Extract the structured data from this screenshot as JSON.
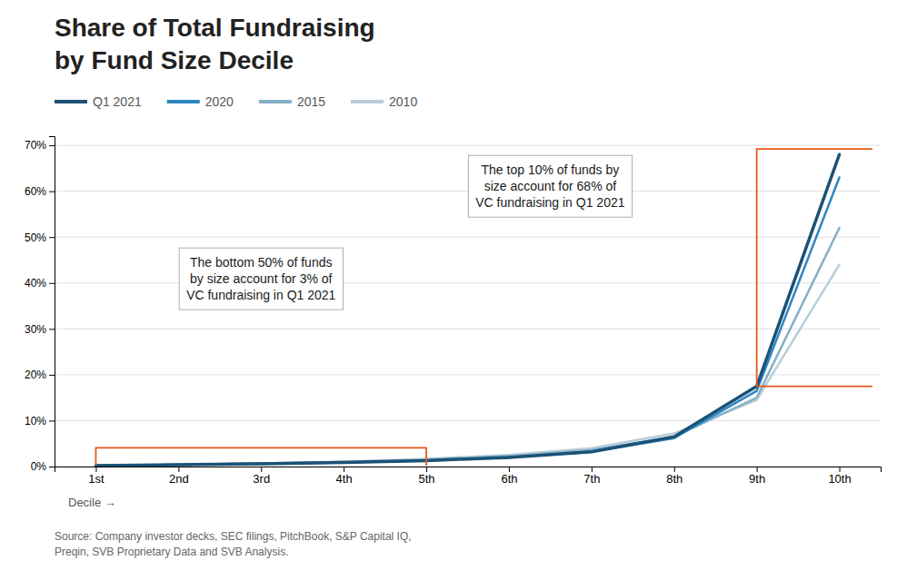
{
  "chart_data": {
    "type": "line",
    "title": [
      "Share of Total Fundraising",
      "by Fund Size Decile"
    ],
    "xlabel": "Decile  →",
    "categories": [
      "1st",
      "2nd",
      "3rd",
      "4th",
      "5th",
      "6th",
      "7th",
      "8th",
      "9th",
      "10th"
    ],
    "series": [
      {
        "name": "Q1 2021",
        "color": "#1a5276",
        "values": [
          0.002,
          0.004,
          0.006,
          0.009,
          0.013,
          0.02,
          0.032,
          0.065,
          0.175,
          0.68
        ]
      },
      {
        "name": "2020",
        "color": "#2e86c1",
        "values": [
          0.002,
          0.004,
          0.006,
          0.009,
          0.013,
          0.02,
          0.032,
          0.062,
          0.165,
          0.63
        ]
      },
      {
        "name": "2015",
        "color": "#85b0c8",
        "values": [
          0.002,
          0.004,
          0.007,
          0.01,
          0.015,
          0.023,
          0.036,
          0.065,
          0.15,
          0.52
        ]
      },
      {
        "name": "2010",
        "color": "#b8cdd8",
        "values": [
          0.002,
          0.004,
          0.007,
          0.011,
          0.017,
          0.025,
          0.04,
          0.072,
          0.145,
          0.44
        ]
      }
    ],
    "ylim": [
      0,
      0.72
    ],
    "yticks": [
      {
        "value": 0.0,
        "label": "0%"
      },
      {
        "value": 0.1,
        "label": "10%"
      },
      {
        "value": 0.2,
        "label": "20%"
      },
      {
        "value": 0.3,
        "label": "30%"
      },
      {
        "value": 0.4,
        "label": "40%"
      },
      {
        "value": 0.5,
        "label": "50%"
      },
      {
        "value": 0.6,
        "label": "60%"
      },
      {
        "value": 0.7,
        "label": "70%"
      }
    ],
    "grid": true,
    "legend": "top",
    "annotations": [
      {
        "text": [
          "The bottom 50% of funds",
          "by size account for 3% of",
          "VC fundraising in Q1 2021"
        ],
        "color": "#e8581a"
      },
      {
        "text": [
          "The top 10% of funds by",
          "size account for 68% of",
          "VC fundraising in Q1 2021"
        ],
        "color": "#e8581a"
      }
    ],
    "source": [
      "Source: Company investor decks, SEC filings, PitchBook, S&P Capital IQ,",
      "Preqin, SVB Proprietary Data and SVB Analysis."
    ]
  }
}
